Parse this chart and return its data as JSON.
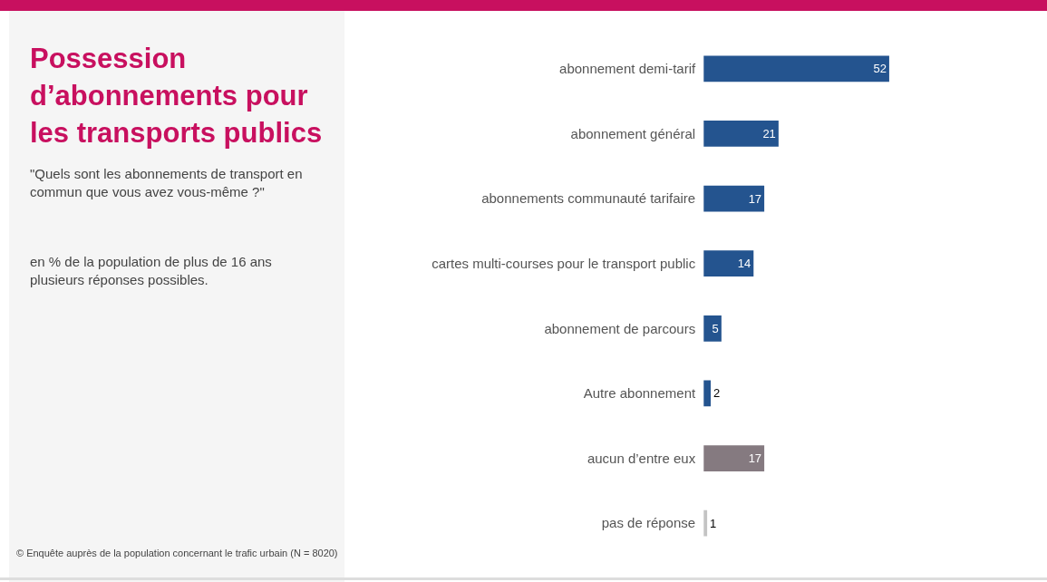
{
  "chart_data": {
    "type": "bar",
    "orientation": "horizontal",
    "title": "Possession d’abonnements pour les transports publics",
    "subtitle": "\"Quels sont les abonnements de transport en commun que vous avez vous-même ?\"",
    "annotations": [
      "en % de la population de plus de 16 ans plusieurs réponses possibles.",
      "© Enquête auprès de la population concernant le trafic urbain (N = 8020)"
    ],
    "categories": [
      "abonnement demi-tarif",
      "abonnement général",
      "abonnements communauté tarifaire",
      "cartes multi-courses pour le transport public",
      "abonnement de parcours",
      "Autre abonnement",
      "aucun d’entre eux",
      "pas de réponse"
    ],
    "values": [
      52,
      21,
      17,
      14,
      5,
      2,
      17,
      1
    ],
    "colors": [
      "#24548f",
      "#24548f",
      "#24548f",
      "#24548f",
      "#24548f",
      "#24548f",
      "#857a80",
      "#c4c4c4"
    ],
    "data_labels": true,
    "tick_labels": "y"
  }
}
